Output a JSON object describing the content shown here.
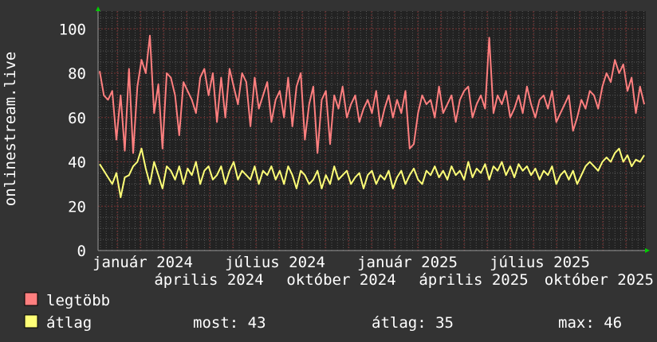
{
  "chart_data": {
    "type": "line",
    "title": "",
    "ylabel": "onlinestream.live",
    "xlabel": "",
    "ylim": [
      0,
      108
    ],
    "y_ticks": [
      "0",
      "20",
      "40",
      "60",
      "80",
      "100"
    ],
    "x_tick_labels": [
      "január 2024",
      "április 2024",
      "július 2024",
      "október 2024",
      "január 2025",
      "április 2025",
      "július 2025",
      "október 2025"
    ],
    "grid": true,
    "legend_placement": "bottom-left",
    "series": [
      {
        "name": "legtöbb",
        "color": "#ff7f7f",
        "values": [
          81,
          70,
          68,
          72,
          50,
          70,
          45,
          82,
          44,
          74,
          86,
          80,
          97,
          62,
          75,
          46,
          80,
          78,
          70,
          52,
          76,
          72,
          68,
          62,
          78,
          82,
          70,
          80,
          58,
          78,
          60,
          82,
          74,
          66,
          80,
          76,
          56,
          78,
          64,
          70,
          76,
          58,
          68,
          72,
          60,
          78,
          56,
          74,
          80,
          50,
          66,
          74,
          44,
          68,
          72,
          48,
          70,
          64,
          74,
          60,
          66,
          70,
          58,
          64,
          68,
          62,
          72,
          56,
          64,
          70,
          60,
          68,
          62,
          72,
          46,
          48,
          62,
          70,
          66,
          68,
          60,
          74,
          62,
          66,
          70,
          58,
          68,
          72,
          74,
          60,
          66,
          70,
          64,
          96,
          62,
          70,
          66,
          72,
          60,
          64,
          70,
          62,
          74,
          66,
          60,
          68,
          70,
          64,
          72,
          58,
          62,
          66,
          70,
          54,
          60,
          68,
          64,
          72,
          70,
          64,
          74,
          80,
          76,
          86,
          80,
          84,
          72,
          78,
          62,
          74,
          66
        ]
      },
      {
        "name": "átlag",
        "color": "#ffff77",
        "values": [
          39,
          36,
          33,
          30,
          35,
          24,
          33,
          34,
          38,
          40,
          46,
          37,
          30,
          40,
          34,
          28,
          38,
          36,
          32,
          38,
          30,
          37,
          34,
          40,
          30,
          36,
          38,
          32,
          34,
          38,
          30,
          36,
          40,
          32,
          36,
          34,
          32,
          38,
          30,
          36,
          34,
          38,
          32,
          36,
          30,
          38,
          34,
          28,
          36,
          34,
          30,
          32,
          36,
          28,
          34,
          30,
          38,
          32,
          34,
          36,
          30,
          33,
          35,
          28,
          34,
          36,
          30,
          34,
          32,
          36,
          28,
          33,
          36,
          30,
          34,
          37,
          32,
          30,
          36,
          34,
          38,
          33,
          36,
          32,
          38,
          34,
          36,
          32,
          40,
          33,
          37,
          35,
          39,
          32,
          38,
          36,
          40,
          34,
          38,
          33,
          39,
          36,
          38,
          34,
          37,
          32,
          36,
          34,
          38,
          30,
          34,
          36,
          32,
          36,
          30,
          34,
          38,
          40,
          38,
          36,
          40,
          42,
          40,
          44,
          46,
          40,
          43,
          38,
          41,
          40,
          43
        ]
      }
    ]
  },
  "legend": {
    "items": [
      {
        "label": "legtöbb",
        "color": "#ff7f7f"
      },
      {
        "label": "átlag",
        "color": "#ffff77"
      }
    ],
    "stats": {
      "most": "most: 43",
      "atlag": "átlag: 35",
      "max": "max: 46"
    }
  }
}
